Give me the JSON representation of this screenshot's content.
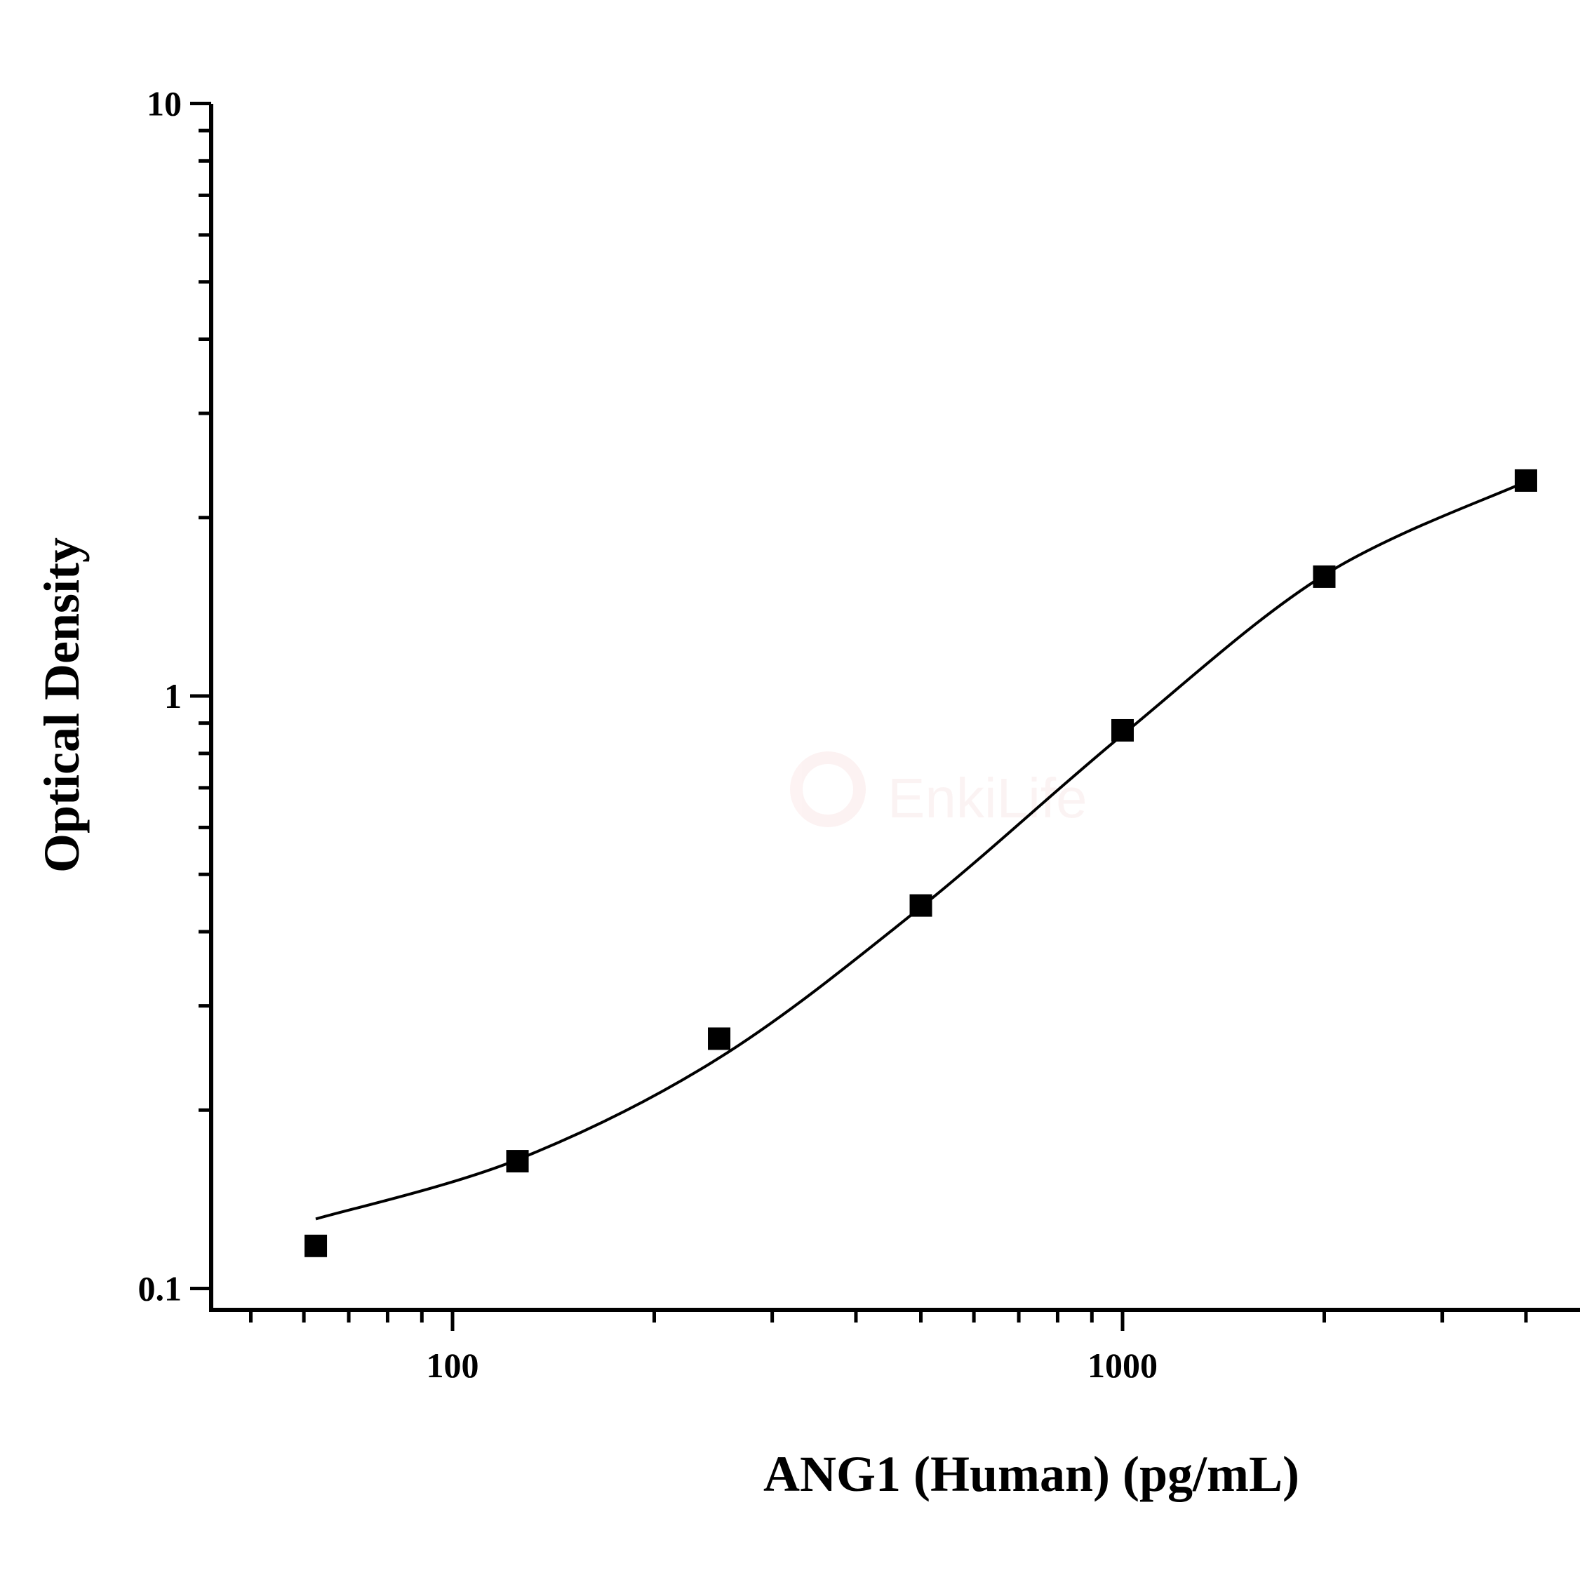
{
  "chart_data": {
    "type": "scatter",
    "title": "",
    "xlabel": "ANG1 (Human) (pg/mL)",
    "ylabel": "Optical Density",
    "x_scale": "log",
    "y_scale": "log",
    "xlim": [
      43.6,
      4800
    ],
    "ylim": [
      0.093,
      10
    ],
    "x_ticks": [
      {
        "value": 100,
        "label": "100"
      },
      {
        "value": 1000,
        "label": "1000"
      }
    ],
    "y_ticks": [
      {
        "value": 0.1,
        "label": "0.1"
      },
      {
        "value": 1,
        "label": "1"
      },
      {
        "value": 10,
        "label": "10"
      }
    ],
    "grid": false,
    "series": [
      {
        "type": "scatter",
        "marker": "square",
        "color": "#000000",
        "x": [
          62.5,
          125,
          250,
          500,
          1000,
          2000,
          4000
        ],
        "y": [
          0.118,
          0.164,
          0.264,
          0.443,
          0.875,
          1.59,
          2.31
        ]
      },
      {
        "type": "line",
        "color": "#000000",
        "x": [
          62.5,
          125,
          250,
          500,
          1000,
          2000,
          4000
        ],
        "y": [
          0.131,
          0.165,
          0.245,
          0.44,
          0.86,
          1.6,
          2.3
        ]
      }
    ],
    "watermark": "EnkiLife"
  }
}
